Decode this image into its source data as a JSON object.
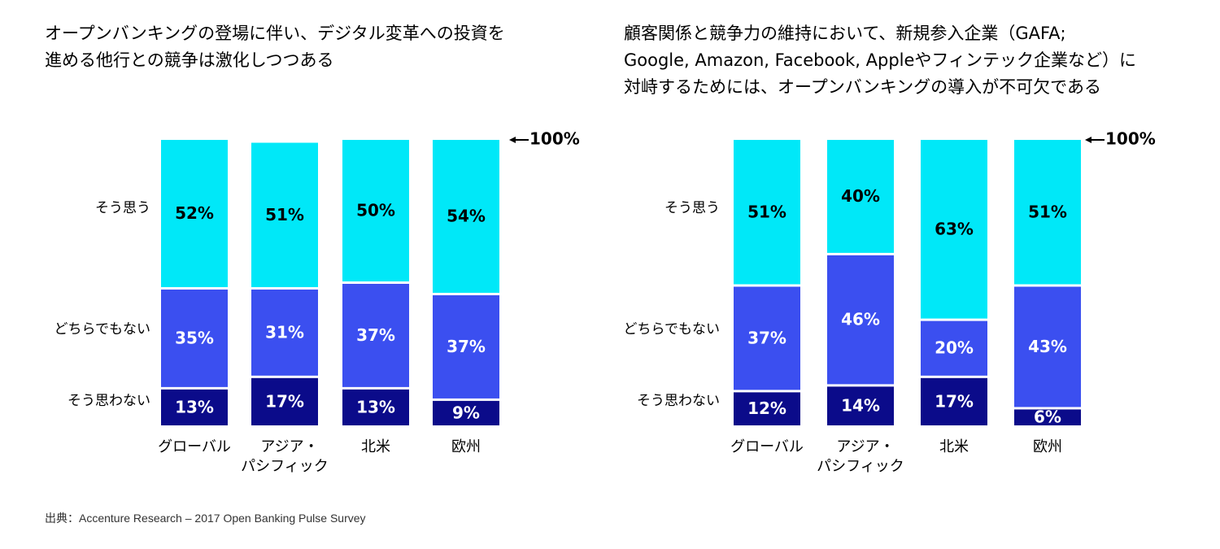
{
  "colors": {
    "agree": "#00E8F8",
    "neutral": "#3B4FF0",
    "disagree": "#0B0B8A",
    "label_dark": "#000000",
    "label_light": "#ffffff"
  },
  "marker_label": "100%",
  "row_labels": [
    "そう思う",
    "どちらでもない",
    "そう思わない"
  ],
  "source": "出典：Accenture Research – 2017 Open Banking Pulse Survey",
  "chart_data": [
    {
      "type": "bar",
      "stacked": true,
      "title_lines": [
        "オープンバンキングの登場に伴い、デジタル変革への投資を",
        "進める他行との競争は激化しつつある"
      ],
      "categories": [
        [
          "グローバル"
        ],
        [
          "アジア・",
          "パシフィック"
        ],
        [
          "北米"
        ],
        [
          "欧州"
        ]
      ],
      "ylim": [
        0,
        100
      ],
      "series": [
        {
          "name": "そう思わない",
          "values": [
            13,
            17,
            13,
            9
          ]
        },
        {
          "name": "どちらでもない",
          "values": [
            35,
            31,
            37,
            37
          ]
        },
        {
          "name": "そう思う",
          "values": [
            52,
            51,
            50,
            54
          ]
        }
      ]
    },
    {
      "type": "bar",
      "stacked": true,
      "title_lines": [
        "顧客関係と競争力の維持において、新規参入企業（GAFA;",
        "Google, Amazon, Facebook, Appleやフィンテック企業など）に",
        "対峙するためには、オープンバンキングの導入が不可欠である"
      ],
      "categories": [
        [
          "グローバル"
        ],
        [
          "アジア・",
          "パシフィック"
        ],
        [
          "北米"
        ],
        [
          "欧州"
        ]
      ],
      "ylim": [
        0,
        100
      ],
      "series": [
        {
          "name": "そう思わない",
          "values": [
            12,
            14,
            17,
            6
          ]
        },
        {
          "name": "どちらでもない",
          "values": [
            37,
            46,
            20,
            43
          ]
        },
        {
          "name": "そう思う",
          "values": [
            51,
            40,
            63,
            51
          ]
        }
      ]
    }
  ]
}
